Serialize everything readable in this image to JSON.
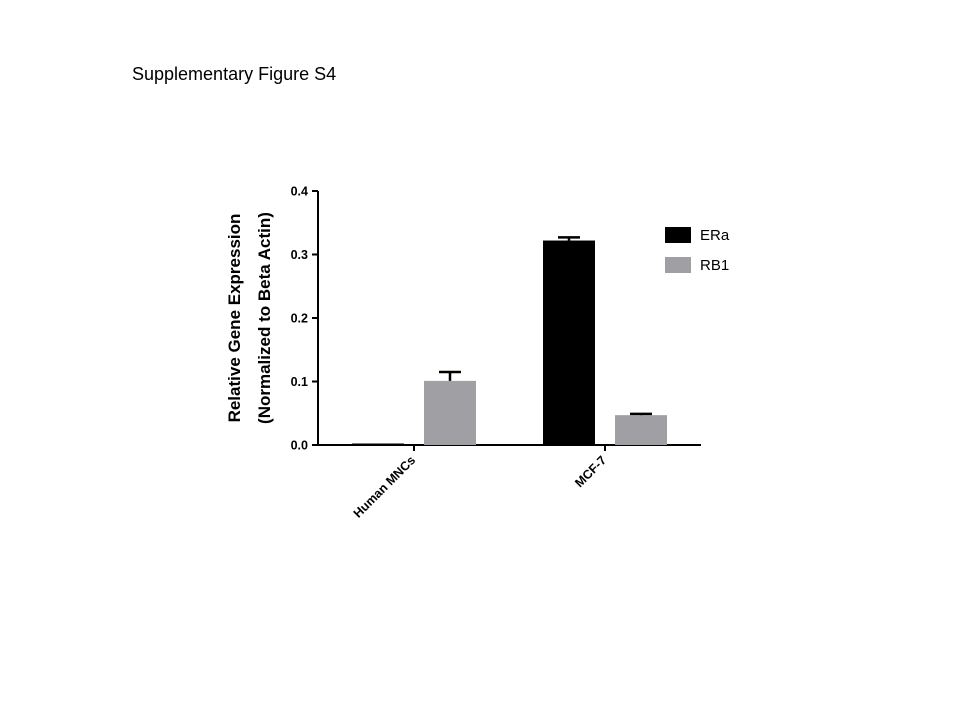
{
  "figure": {
    "title": "Supplementary Figure S4"
  },
  "chart_data": {
    "type": "bar",
    "title": "",
    "xlabel": "",
    "ylabel": [
      "Relative Gene Expression",
      "(Normalized to Beta Actin)"
    ],
    "categories": [
      "Human MNCs",
      "MCF-7"
    ],
    "series": [
      {
        "name": "ERa",
        "values": [
          0.002,
          0.322
        ],
        "errors": [
          0.0,
          0.005
        ],
        "color": "#000000"
      },
      {
        "name": "RB1",
        "values": [
          0.101,
          0.047
        ],
        "errors": [
          0.014,
          0.002
        ],
        "color": "#a0a0a4"
      }
    ],
    "ylim": [
      0,
      0.4
    ],
    "yticks": [
      "0.0",
      "0.1",
      "0.2",
      "0.3",
      "0.4"
    ],
    "legend": "right",
    "grid": false
  }
}
